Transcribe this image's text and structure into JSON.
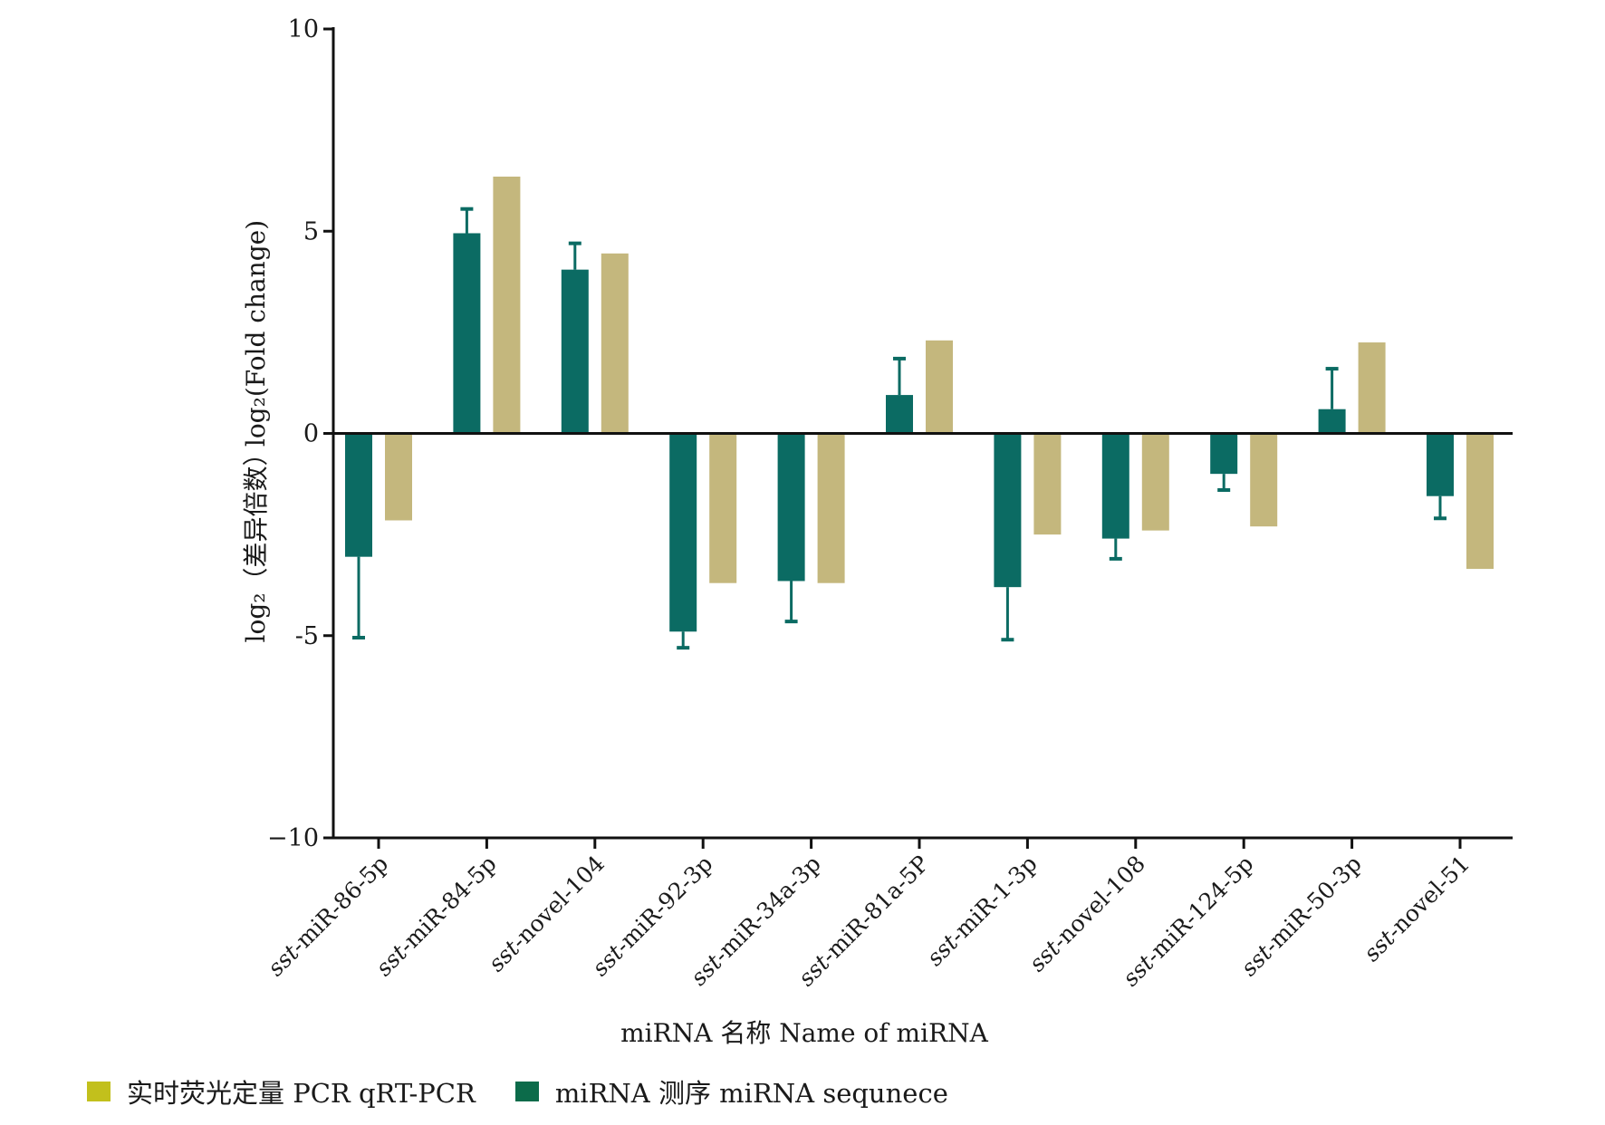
{
  "chart_data": {
    "type": "bar",
    "title": "",
    "xlabel": "miRNA 名称  Name  of  miRNA",
    "ylabel_cn": "log₂（差异倍数）",
    "ylabel_en": "log₂(Fold  change)",
    "ylim": [
      -10,
      10
    ],
    "yticks": [
      10,
      5,
      0,
      -5,
      -10
    ],
    "ytick_labels": [
      "10",
      "5",
      "0",
      "-5",
      "−10"
    ],
    "categories": [
      {
        "prefix": "sst-",
        "name": "miR-86-5p"
      },
      {
        "prefix": "sst-",
        "name": "miR-84-5p"
      },
      {
        "prefix": "sst-",
        "name": "novel-104"
      },
      {
        "prefix": "sst-",
        "name": "miR-92-3p"
      },
      {
        "prefix": "sst-",
        "name": "miR-34a-3p"
      },
      {
        "prefix": "sst-",
        "name": "miR-81a-5P"
      },
      {
        "prefix": "sst-",
        "name": "miR-1-3p"
      },
      {
        "prefix": "sst-",
        "name": "novel-108"
      },
      {
        "prefix": "sst-",
        "name": "miR-124-5p"
      },
      {
        "prefix": "sst-",
        "name": "miR-50-3p"
      },
      {
        "prefix": "sst-",
        "name": "novel-51"
      }
    ],
    "series": [
      {
        "name": "miRNA 测序  miRNA  sequnece",
        "color": "#0b6b63",
        "values": [
          -3.05,
          4.95,
          4.05,
          -4.9,
          -3.65,
          0.95,
          -3.8,
          -2.6,
          -1.0,
          0.6,
          -1.55
        ],
        "error": [
          2.0,
          0.6,
          0.65,
          0.4,
          1.0,
          0.9,
          1.3,
          0.5,
          0.4,
          1.0,
          0.55
        ]
      },
      {
        "name": "实时荧光定量 PCR  qRT-PCR",
        "color": "#c4b77d",
        "values": [
          -2.15,
          6.35,
          4.45,
          -3.7,
          -3.7,
          2.3,
          -2.5,
          -2.4,
          -2.3,
          2.25,
          -3.35
        ]
      }
    ],
    "legend_position": "bottom-left",
    "legend_swatch_colors": {
      "qrt": "#c2c01c",
      "seq": "#0c6b4a"
    },
    "grid": false
  }
}
